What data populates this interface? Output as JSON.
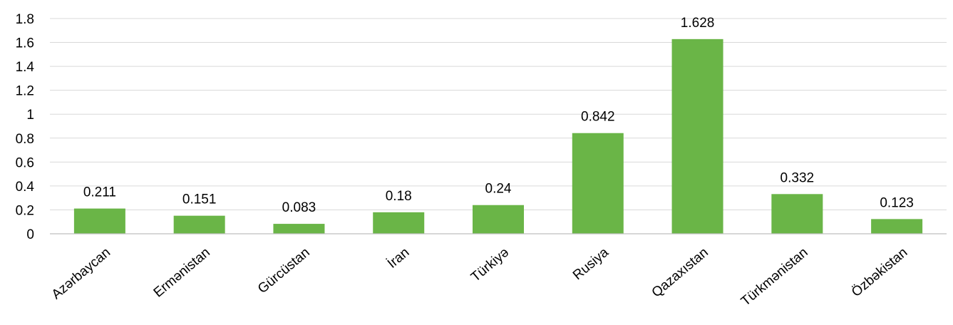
{
  "chart_data": {
    "type": "bar",
    "title": "",
    "xlabel": "",
    "ylabel": "",
    "ylim": [
      0,
      1.8
    ],
    "yticks": [
      "0",
      "0.2",
      "0.4",
      "0.6",
      "0.8",
      "1",
      "1.2",
      "1.4",
      "1.6",
      "1.8"
    ],
    "ytick_values": [
      0,
      0.2,
      0.4,
      0.6,
      0.8,
      1,
      1.2,
      1.4,
      1.6,
      1.8
    ],
    "categories": [
      "Azərbaycan",
      "Ermənistan",
      "Gürcüstan",
      "İran",
      "Türkiyə",
      "Rusiya",
      "Qazaxıstan",
      "Türkmənistan",
      "Özbəkistan"
    ],
    "values": [
      0.211,
      0.151,
      0.083,
      0.18,
      0.24,
      0.842,
      1.628,
      0.332,
      0.123
    ],
    "value_labels": [
      "0.211",
      "0.151",
      "0.083",
      "0.18",
      "0.24",
      "0.842",
      "1.628",
      "0.332",
      "0.123"
    ],
    "bar_color": "#6ab547",
    "grid": true,
    "legend": "none"
  }
}
